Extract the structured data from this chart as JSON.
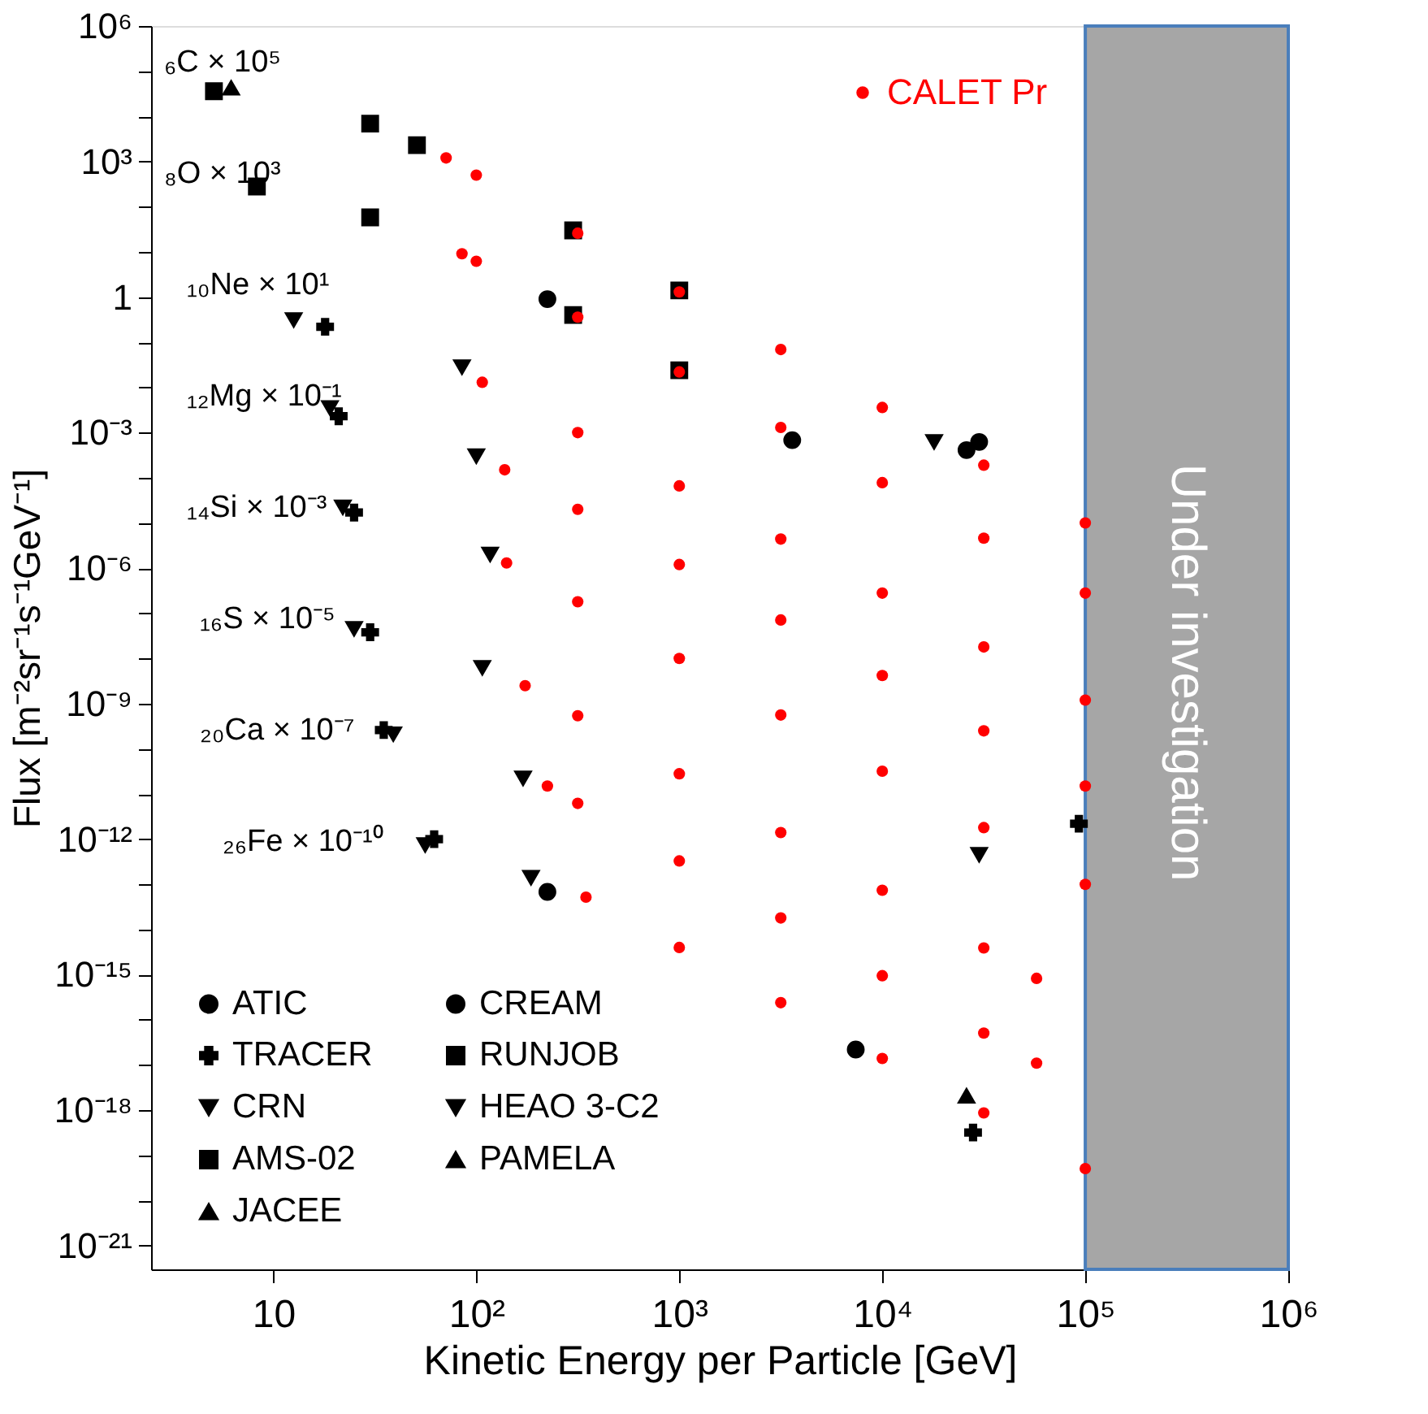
{
  "chart_data": {
    "type": "scatter",
    "xlabel": "Kinetic Energy per Particle [GeV]",
    "ylabel": "Flux [m⁻²sr⁻¹s⁻¹GeV⁻¹]",
    "log": "xy",
    "xlim": [
      2.5,
      1000000
    ],
    "ylim": [
      3e-22,
      1000000
    ],
    "xticks": [
      10,
      {
        "value": 100,
        "label": "10²"
      },
      {
        "value": 1000,
        "label": "10³"
      },
      {
        "value": 10000,
        "label": "10⁴"
      },
      {
        "value": 100000,
        "label": "10⁵"
      },
      {
        "value": 1000000,
        "label": "10⁶"
      }
    ],
    "yticks": [
      {
        "value": 1000000.0,
        "label": "10⁶"
      },
      {
        "value": 100000.0,
        "label": null
      },
      {
        "value": 10000.0,
        "label": null
      },
      {
        "value": 1000.0,
        "label": "10³"
      },
      {
        "value": 100.0,
        "label": null
      },
      {
        "value": 10.0,
        "label": null
      },
      {
        "value": 1,
        "label": "1"
      },
      {
        "value": 0.1,
        "label": null
      },
      {
        "value": 0.01,
        "label": null
      },
      {
        "value": 0.001,
        "label": "10⁻³"
      },
      {
        "value": 0.0001,
        "label": null
      },
      {
        "value": 1e-05,
        "label": null
      },
      {
        "value": 1e-06,
        "label": "10⁻⁶"
      },
      {
        "value": 1e-07,
        "label": null
      },
      {
        "value": 1e-08,
        "label": null
      },
      {
        "value": 1e-09,
        "label": "10⁻⁹"
      },
      {
        "value": 1e-10,
        "label": null
      },
      {
        "value": 1e-11,
        "label": null
      },
      {
        "value": 1e-12,
        "label": "10⁻¹²"
      },
      {
        "value": 1e-13,
        "label": null
      },
      {
        "value": 1e-14,
        "label": null
      },
      {
        "value": 1e-15,
        "label": "10⁻¹⁵"
      },
      {
        "value": 1e-16,
        "label": null
      },
      {
        "value": 1e-17,
        "label": null
      },
      {
        "value": 1e-18,
        "label": "10⁻¹⁸"
      },
      {
        "value": 1e-19,
        "label": null
      },
      {
        "value": 1e-20,
        "label": null
      },
      {
        "value": 1e-21,
        "label": "10⁻²¹"
      }
    ],
    "grid": false,
    "legend": "bottom left",
    "series": [
      {
        "name": "ATIC",
        "color": "#000000",
        "marker": "circle",
        "x": [
          224,
          30000,
          224
        ],
        "values": [
          0.9,
          0.00062,
          6.8e-14
        ]
      },
      {
        "name": "TRACER",
        "color": "#000000",
        "marker": "cross",
        "x": [
          18,
          21,
          25,
          30,
          35,
          62,
          28000,
          93000
        ],
        "values": [
          0.22,
          0.0023,
          1.7e-05,
          3.8e-08,
          2.6e-10,
          1e-12,
          3.2e-19,
          2.2e-12
        ]
      },
      {
        "name": "CRN",
        "color": "#000000",
        "marker": "triangle-down",
        "x": [
          18000,
          30000
        ],
        "values": [
          0.00062,
          4.5e-13
        ]
      },
      {
        "name": "AMS-02",
        "color": "#000000",
        "marker": "square",
        "x": [
          5.1,
          30,
          300,
          1000,
          8.3,
          30,
          300,
          1000
        ],
        "values": [
          36000.0,
          6900.0,
          30,
          1.4,
          280,
          58,
          0.4,
          0.024
        ]
      },
      {
        "name": "JACEE",
        "color": "#000000",
        "marker": "triangle",
        "x": [
          26000
        ],
        "values": [
          2.1e-18
        ]
      },
      {
        "name": "CREAM",
        "color": "#000000",
        "marker": "circle",
        "x": [
          3600,
          26000,
          7400
        ],
        "values": [
          0.00068,
          0.00041,
          2.2e-17
        ]
      },
      {
        "name": "RUNJOB",
        "color": "#000000",
        "marker": "square",
        "x": [
          51
        ],
        "values": [
          2300.0
        ]
      },
      {
        "name": "HEAO 3-C2",
        "color": "#000000",
        "marker": "triangle-down",
        "x": [
          12.6,
          85,
          19,
          100,
          22,
          117,
          25,
          107,
          39,
          170,
          56,
          186
        ],
        "values": [
          0.31,
          0.028,
          0.0035,
          0.0003,
          2.2e-05,
          2e-06,
          4.5e-08,
          6.2e-09,
          2.1e-10,
          2.2e-11,
          7.4e-13,
          1.4e-13
        ]
      },
      {
        "name": "PAMELA",
        "color": "#000000",
        "marker": "triangle",
        "x": [
          6.2
        ],
        "values": [
          43000.0
        ]
      },
      {
        "name": "CALET Pr",
        "color": "#ff0000",
        "marker": "circle",
        "x": [
          71,
          100,
          316,
          1000,
          3162,
          10000,
          31623,
          100000,
          85,
          100,
          316,
          1000,
          3162,
          10000,
          31623,
          100000,
          107,
          316,
          1000,
          3162,
          10000,
          31623,
          100000,
          138,
          316,
          1000,
          3162,
          10000,
          31623,
          100000,
          141,
          316,
          1000,
          3162,
          10000,
          31623,
          100000,
          174,
          316,
          1000,
          3162,
          10000,
          31623,
          57544,
          224,
          316,
          1000,
          3162,
          10000,
          31623,
          57544,
          347,
          1000,
          3162,
          10000,
          31623,
          100000
        ],
        "values": [
          1200.0,
          500,
          26,
          1.3,
          0.069,
          0.0036,
          0.00019,
          1e-05,
          9.1,
          6.2,
          0.36,
          0.022,
          0.0013,
          7.8e-05,
          4.6e-06,
          2.8e-07,
          0.013,
          0.001,
          6.6e-05,
          4.4e-06,
          2.8e-07,
          1.8e-08,
          1.2e-09,
          0.00015,
          2e-05,
          1.2e-06,
          7.1e-08,
          4.2e-09,
          2.5e-10,
          1.5e-11,
          1.3e-06,
          1.8e-07,
          1e-08,
          5.6e-10,
          3.2e-11,
          1.8e-12,
          1e-13,
          2.5e-09,
          5.4e-10,
          2.8e-11,
          1.4e-12,
          7.4e-14,
          3.9e-15,
          8.3e-16,
          1.5e-11,
          6.2e-12,
          3.3e-13,
          1.8e-14,
          9.5e-16,
          5.1e-17,
          1.1e-17,
          5.2e-14,
          4e-15,
          2.4e-16,
          1.4e-17,
          8.7e-19,
          5.1e-20
        ]
      }
    ],
    "annotations": [
      "₆C × 10⁵",
      "₈O × 10³",
      "₁₀Ne × 10¹",
      "₁₂Mg × 10⁻¹",
      "₁₄Si × 10⁻³",
      "₁₆S × 10⁻⁵",
      "₂₀Ca × 10⁻⁷",
      "₂₆Fe × 10⁻¹⁰"
    ],
    "bands": [
      {
        "axis": "x",
        "from": 100000,
        "to": 1000000,
        "label": "Under investigation",
        "color": "#a6a6a6"
      }
    ]
  }
}
